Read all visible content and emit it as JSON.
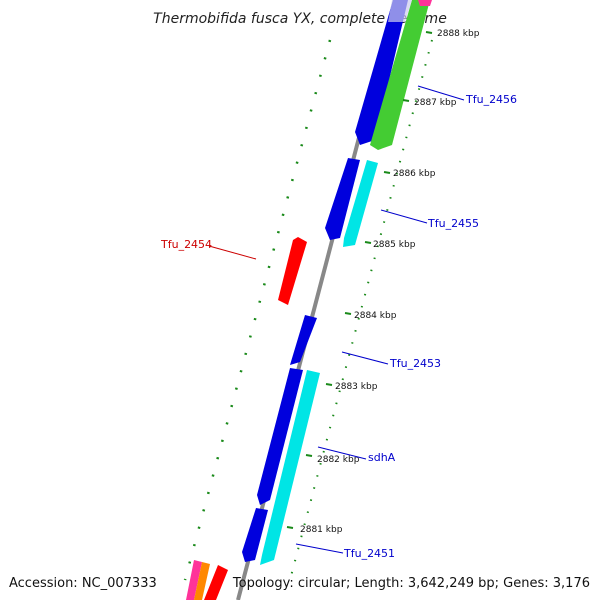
{
  "title": "Thermobifida fusca YX, complete genome",
  "footer": {
    "accession": "Accession: NC_007333",
    "summary": "Topology: circular; Length: 3,642,249 bp; Genes: 3,176"
  },
  "ticks": [
    {
      "label": "2888 kbp"
    },
    {
      "label": "2887 kbp"
    },
    {
      "label": "2886 kbp"
    },
    {
      "label": "2885 kbp"
    },
    {
      "label": "2884 kbp"
    },
    {
      "label": "2883 kbp"
    },
    {
      "label": "2882 kbp"
    },
    {
      "label": "2881 kbp"
    }
  ],
  "gene_labels": [
    {
      "text": "Tfu_2456",
      "color": "#0000cc"
    },
    {
      "text": "Tfu_2455",
      "color": "#0000cc"
    },
    {
      "text": "Tfu_2454",
      "color": "#cc0000"
    },
    {
      "text": "Tfu_2453",
      "color": "#0000cc"
    },
    {
      "text": "sdhA",
      "color": "#0000cc"
    },
    {
      "text": "Tfu_2451",
      "color": "#0000cc"
    }
  ],
  "colors": {
    "forward_cds": "#0000dd",
    "reverse_cds": "#00e5e5",
    "trna_like": "#44cc33",
    "highlight": "#ff0000",
    "backbone": "#888888",
    "gc_dots": "#1a8a1a"
  }
}
